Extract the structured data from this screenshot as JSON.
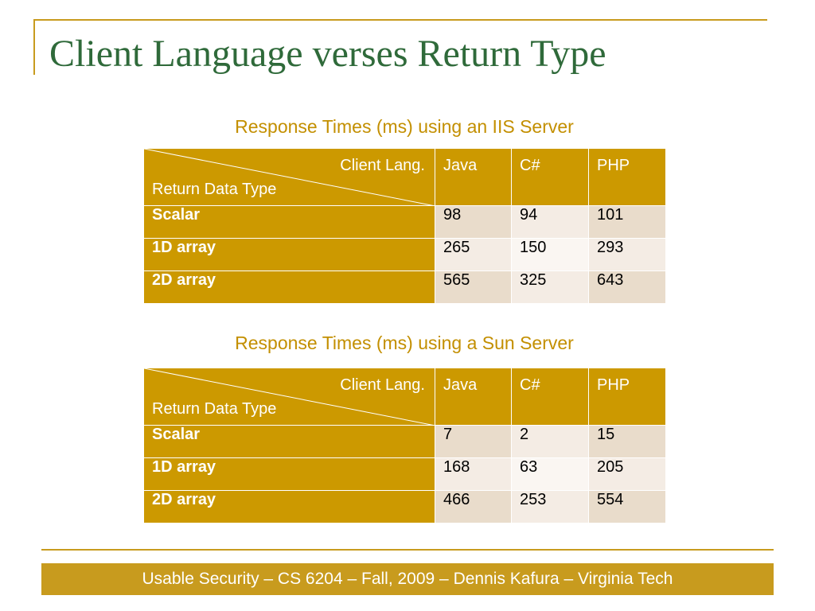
{
  "title": "Client Language verses Return Type",
  "tables": [
    {
      "caption": "Response Times (ms) using an IIS Server",
      "corner_top": "Client Lang.",
      "corner_bottom": "Return Data Type",
      "columns": [
        "Java",
        "C#",
        "PHP"
      ],
      "rows": [
        {
          "label": "Scalar",
          "values": [
            "98",
            "94",
            "101"
          ]
        },
        {
          "label": "1D array",
          "values": [
            "265",
            "150",
            "293"
          ]
        },
        {
          "label": "2D array",
          "values": [
            "565",
            "325",
            "643"
          ]
        }
      ]
    },
    {
      "caption": "Response Times (ms) using a Sun Server",
      "corner_top": "Client Lang.",
      "corner_bottom": "Return Data Type",
      "columns": [
        "Java",
        "C#",
        "PHP"
      ],
      "rows": [
        {
          "label": "Scalar",
          "values": [
            "7",
            "2",
            "15"
          ]
        },
        {
          "label": "1D array",
          "values": [
            "168",
            "63",
            "205"
          ]
        },
        {
          "label": "2D array",
          "values": [
            "466",
            "253",
            "554"
          ]
        }
      ]
    }
  ],
  "footer": "Usable Security – CS 6204 – Fall, 2009 – Dennis Kafura – Virginia Tech",
  "colors": {
    "accent": "#c89b1e",
    "title": "#2f6a3a",
    "caption": "#c38f00"
  }
}
